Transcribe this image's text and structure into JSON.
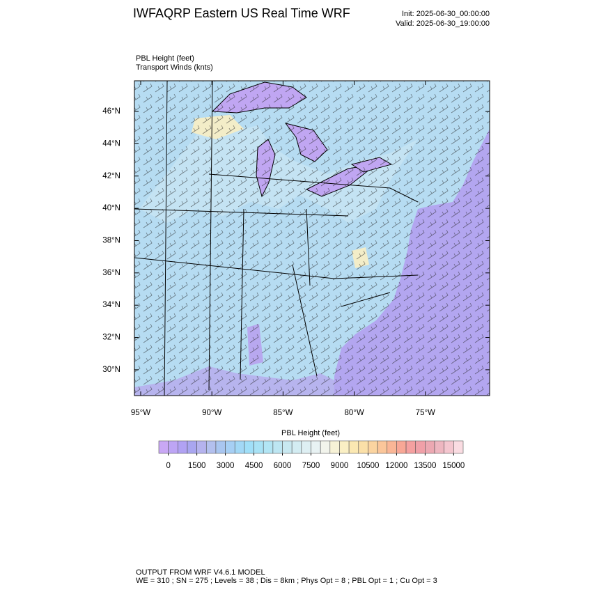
{
  "title": "IWFAQRP Eastern US Real Time WRF",
  "init": "Init: 2025-06-30_00:00:00",
  "valid": "Valid: 2025-06-30_19:00:00",
  "fields": [
    "PBL Height   (feet)",
    "Transport Winds   (knts)"
  ],
  "map": {
    "xlim": [
      -95.44,
      -70.49
    ],
    "ylim": [
      28.4,
      47.9
    ],
    "xticks": [
      {
        "value": -95,
        "label": "95°W"
      },
      {
        "value": -90,
        "label": "90°W"
      },
      {
        "value": -85,
        "label": "85°W"
      },
      {
        "value": -80,
        "label": "80°W"
      },
      {
        "value": -75,
        "label": "75°W"
      }
    ],
    "yticks": [
      {
        "value": 30,
        "label": "30°N"
      },
      {
        "value": 32,
        "label": "32°N"
      },
      {
        "value": 34,
        "label": "34°N"
      },
      {
        "value": 36,
        "label": "36°N"
      },
      {
        "value": 38,
        "label": "38°N"
      },
      {
        "value": 40,
        "label": "40°N"
      },
      {
        "value": 42,
        "label": "42°N"
      },
      {
        "value": 44,
        "label": "44°N"
      },
      {
        "value": 46,
        "label": "46°N"
      }
    ]
  },
  "colorbar": {
    "title": "PBL Height  (feet)",
    "lim": [
      0,
      15000
    ],
    "ticks": [
      0,
      1500,
      3000,
      4500,
      6000,
      7500,
      9000,
      10500,
      12000,
      13500,
      15000
    ],
    "colors": [
      "#c9a8f5",
      "#bda5f5",
      "#b1a2f3",
      "#a9a6f0",
      "#b5b3ee",
      "#b3c0ee",
      "#a9c6f0",
      "#a6cff4",
      "#a2d8f6",
      "#a0dff8",
      "#a8e2f5",
      "#b2e5f4",
      "#bde6f2",
      "#c8e8f0",
      "#d3ecf2",
      "#deeff3",
      "#e8f2f3",
      "#f2f4ec",
      "#f7f2d6",
      "#faefc4",
      "#fbe8b2",
      "#fbe0a8",
      "#fbd4a0",
      "#fbc69a",
      "#fab696",
      "#f8a796",
      "#f5a0a0",
      "#f0a0a8",
      "#eca8b2",
      "#eeb6c0",
      "#f4c6cf",
      "#fadce2"
    ]
  },
  "footer": [
    "OUTPUT FROM WRF V4.6.1 MODEL",
    "WE = 310 ; SN = 275 ; Levels = 38 ; Dis = 8km ; Phys Opt = 8 ; PBL Opt = 1 ; Cu Opt = 3"
  ]
}
